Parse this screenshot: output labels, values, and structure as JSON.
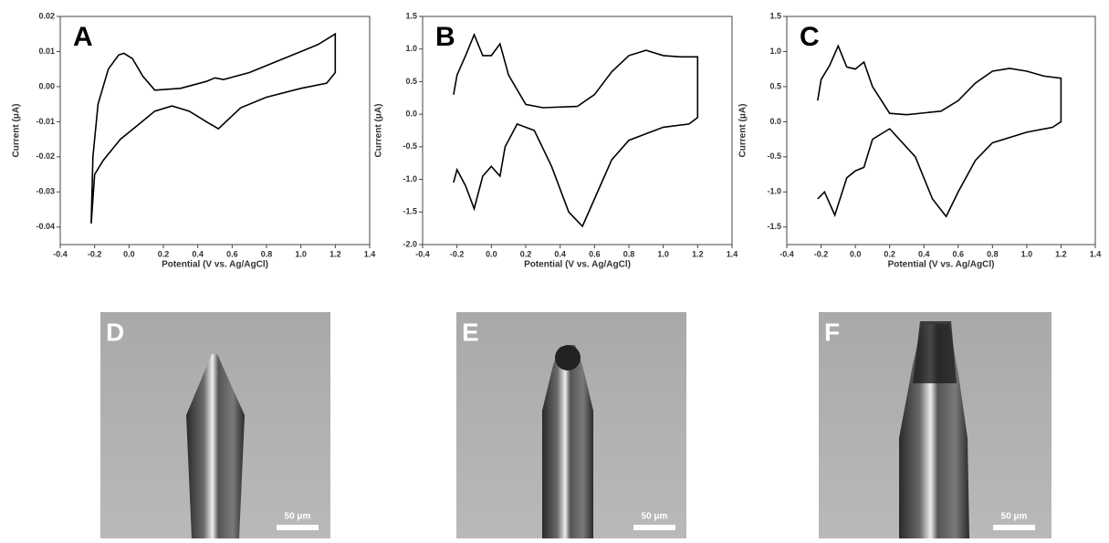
{
  "chart_data": [
    {
      "type": "line",
      "panel": "A",
      "xlabel": "Potential (V vs. Ag/AgCl)",
      "ylabel": "Current (μA)",
      "x": [
        -0.22,
        -0.21,
        -0.18,
        -0.12,
        -0.06,
        -0.03,
        0.02,
        0.08,
        0.15,
        0.3,
        0.45,
        0.5,
        0.55,
        0.7,
        0.85,
        1.0,
        1.1,
        1.2,
        1.2,
        1.15,
        1.0,
        0.8,
        0.65,
        0.52,
        0.45,
        0.35,
        0.25,
        0.15,
        0.05,
        -0.05,
        -0.15,
        -0.2,
        -0.22
      ],
      "series": [
        {
          "color": "#000000",
          "values": [
            -0.039,
            -0.02,
            -0.005,
            0.005,
            0.009,
            0.0095,
            0.008,
            0.003,
            -0.001,
            -0.0005,
            0.0015,
            0.0025,
            0.002,
            0.004,
            0.007,
            0.01,
            0.012,
            0.015,
            0.004,
            0.001,
            -0.0005,
            -0.003,
            -0.006,
            -0.012,
            -0.01,
            -0.007,
            -0.0055,
            -0.007,
            -0.011,
            -0.015,
            -0.021,
            -0.025,
            -0.039
          ]
        }
      ],
      "xlim": [
        -0.4,
        1.4
      ],
      "ylim": [
        -0.045,
        0.02
      ],
      "xticks": [
        -0.4,
        -0.2,
        {
          "value": 0,
          "label": "0.0"
        },
        0.2,
        0.4,
        0.6,
        0.8,
        {
          "value": 1,
          "label": "1.0"
        },
        1.2,
        1.4
      ],
      "yticks": [
        0.02,
        0.01,
        {
          "value": 0,
          "label": "0.00"
        },
        -0.01,
        -0.02,
        -0.03,
        -0.04
      ]
    },
    {
      "type": "line",
      "panel": "B",
      "xlabel": "Potential (V vs. Ag/AgCl)",
      "ylabel": "Current (μA)",
      "x": [
        -0.22,
        -0.2,
        -0.15,
        -0.1,
        -0.05,
        0.0,
        0.05,
        0.1,
        0.2,
        0.3,
        0.5,
        0.6,
        0.7,
        0.8,
        0.9,
        1.0,
        1.1,
        1.2,
        1.2,
        1.15,
        1.0,
        0.8,
        0.7,
        0.6,
        0.53,
        0.45,
        0.35,
        0.25,
        0.15,
        0.08,
        0.05,
        0.0,
        -0.05,
        -0.1,
        -0.15,
        -0.2,
        -0.22
      ],
      "series": [
        {
          "color": "#000000",
          "values": [
            0.3,
            0.6,
            0.9,
            1.22,
            0.9,
            0.9,
            1.08,
            0.6,
            0.15,
            0.1,
            0.12,
            0.3,
            0.65,
            0.9,
            0.98,
            0.9,
            0.88,
            0.88,
            -0.05,
            -0.15,
            -0.2,
            -0.4,
            -0.7,
            -1.3,
            -1.72,
            -1.5,
            -0.8,
            -0.25,
            -0.15,
            -0.5,
            -0.95,
            -0.8,
            -0.95,
            -1.45,
            -1.1,
            -0.85,
            -1.05
          ]
        }
      ],
      "xlim": [
        -0.4,
        1.4
      ],
      "ylim": [
        -2,
        1.5
      ],
      "xticks": [
        -0.4,
        -0.2,
        {
          "value": 0,
          "label": "0.0"
        },
        0.2,
        0.4,
        0.6,
        0.8,
        {
          "value": 1,
          "label": "1.0"
        },
        1.2,
        1.4
      ],
      "yticks": [
        1.5,
        {
          "value": 1,
          "label": "1.0"
        },
        0.5,
        {
          "value": 0,
          "label": "0.0"
        },
        -0.5,
        {
          "value": -1,
          "label": "-1.0"
        },
        -1.5,
        {
          "value": -2,
          "label": "-2.0"
        }
      ]
    },
    {
      "type": "line",
      "panel": "C",
      "xlabel": "Potential (V vs. Ag/AgCl)",
      "ylabel": "Current (μA)",
      "x": [
        -0.22,
        -0.2,
        -0.15,
        -0.1,
        -0.05,
        0.0,
        0.05,
        0.1,
        0.2,
        0.3,
        0.5,
        0.6,
        0.7,
        0.8,
        0.9,
        1.0,
        1.1,
        1.2,
        1.2,
        1.15,
        1.0,
        0.8,
        0.7,
        0.6,
        0.53,
        0.45,
        0.35,
        0.2,
        0.1,
        0.05,
        0.0,
        -0.05,
        -0.12,
        -0.18,
        -0.22
      ],
      "series": [
        {
          "color": "#000000",
          "values": [
            0.3,
            0.6,
            0.8,
            1.08,
            0.78,
            0.75,
            0.85,
            0.5,
            0.12,
            0.1,
            0.15,
            0.3,
            0.55,
            0.72,
            0.76,
            0.72,
            0.65,
            0.62,
            0.0,
            -0.08,
            -0.15,
            -0.3,
            -0.55,
            -1.0,
            -1.35,
            -1.1,
            -0.5,
            -0.1,
            -0.25,
            -0.65,
            -0.7,
            -0.8,
            -1.33,
            -1.0,
            -1.1
          ]
        }
      ],
      "xlim": [
        -0.4,
        1.4
      ],
      "ylim": [
        -1.75,
        1.5
      ],
      "xticks": [
        -0.4,
        -0.2,
        {
          "value": 0,
          "label": "0.0"
        },
        0.2,
        0.4,
        0.6,
        0.8,
        {
          "value": 1,
          "label": "1.0"
        },
        1.2,
        1.4
      ],
      "yticks": [
        1.5,
        {
          "value": 1,
          "label": "1.0"
        },
        0.5,
        {
          "value": 0,
          "label": "0.0"
        },
        -0.5,
        {
          "value": -1,
          "label": "-1.0"
        },
        -1.5
      ]
    }
  ],
  "images": [
    {
      "label": "D",
      "scale_bar": "50 μm"
    },
    {
      "label": "E",
      "scale_bar": "50 μm"
    },
    {
      "label": "F",
      "scale_bar": "50 μm"
    }
  ]
}
